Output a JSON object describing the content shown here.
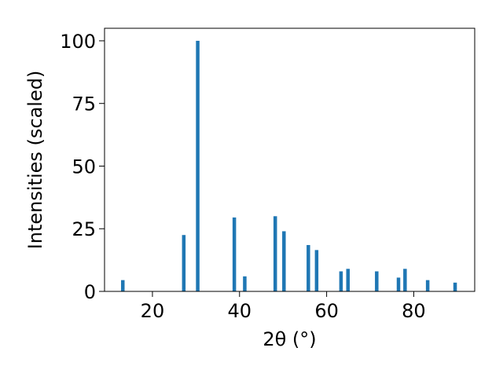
{
  "chart_data": {
    "type": "bar",
    "xlabel": "2θ (°)",
    "ylabel": "Intensities (scaled)",
    "xlim": [
      9,
      94
    ],
    "ylim": [
      0,
      105
    ],
    "xticks": [
      20,
      40,
      60,
      80
    ],
    "yticks": [
      0,
      25,
      50,
      75,
      100
    ],
    "bar_color": "#1f77b4",
    "grid": false,
    "peaks": [
      {
        "x": 13.2,
        "y": 4.5
      },
      {
        "x": 27.2,
        "y": 22.5
      },
      {
        "x": 30.4,
        "y": 100
      },
      {
        "x": 38.8,
        "y": 29.5
      },
      {
        "x": 41.2,
        "y": 6
      },
      {
        "x": 48.2,
        "y": 30
      },
      {
        "x": 50.2,
        "y": 24
      },
      {
        "x": 55.8,
        "y": 18.5
      },
      {
        "x": 57.7,
        "y": 16.5
      },
      {
        "x": 63.3,
        "y": 8
      },
      {
        "x": 64.9,
        "y": 9
      },
      {
        "x": 71.5,
        "y": 8
      },
      {
        "x": 76.5,
        "y": 5.5
      },
      {
        "x": 78.0,
        "y": 9
      },
      {
        "x": 83.2,
        "y": 4.5
      },
      {
        "x": 89.5,
        "y": 3.5
      }
    ]
  }
}
